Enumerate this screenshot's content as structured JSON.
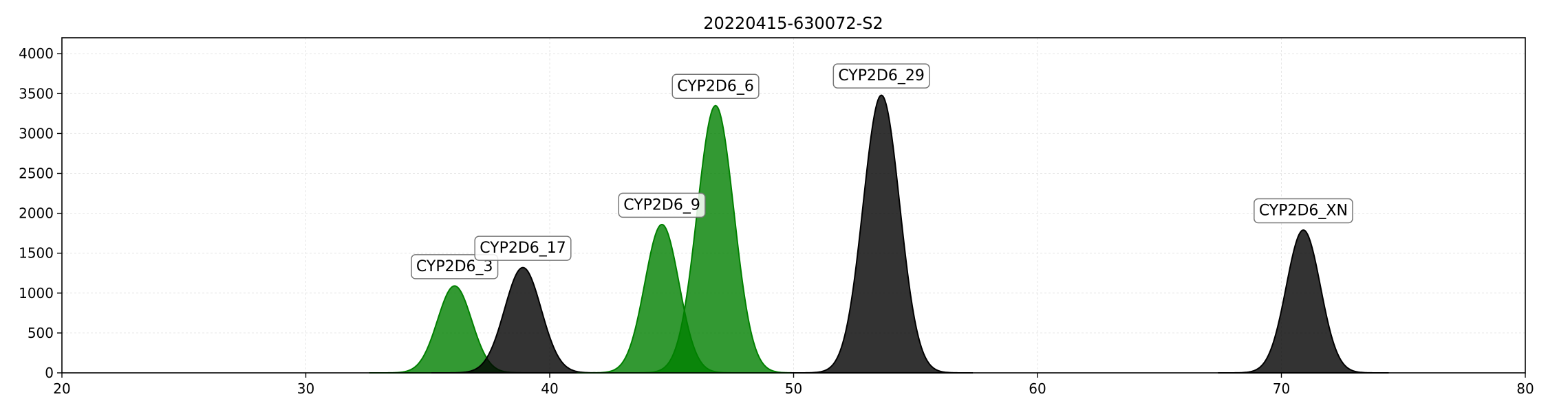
{
  "chart_data": {
    "type": "area",
    "title": "20220415-630072-S2",
    "xlabel": "",
    "ylabel": "",
    "xlim": [
      20,
      80
    ],
    "ylim": [
      0,
      4200
    ],
    "xticks": [
      20,
      30,
      40,
      50,
      60,
      70,
      80
    ],
    "yticks": [
      0,
      500,
      1000,
      1500,
      2000,
      2500,
      3000,
      3500,
      4000
    ],
    "grid": true,
    "colors": {
      "green": "#008000",
      "black": "#000000"
    },
    "peaks": [
      {
        "name": "CYP2D6_3",
        "x": 36.1,
        "height": 1090,
        "sigma": 0.7,
        "color": "green"
      },
      {
        "name": "CYP2D6_17",
        "x": 38.9,
        "height": 1320,
        "sigma": 0.75,
        "color": "black"
      },
      {
        "name": "CYP2D6_9",
        "x": 44.6,
        "height": 1860,
        "sigma": 0.7,
        "color": "green"
      },
      {
        "name": "CYP2D6_6",
        "x": 46.8,
        "height": 3350,
        "sigma": 0.75,
        "color": "green"
      },
      {
        "name": "CYP2D6_29",
        "x": 53.6,
        "height": 3480,
        "sigma": 0.75,
        "color": "black"
      },
      {
        "name": "CYP2D6_XN",
        "x": 70.9,
        "height": 1790,
        "sigma": 0.7,
        "color": "black"
      }
    ]
  }
}
